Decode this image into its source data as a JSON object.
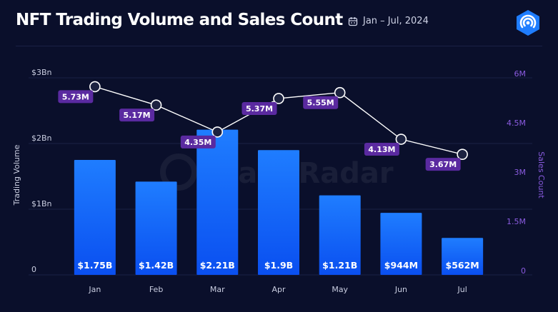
{
  "header": {
    "title": "NFT Trading Volume and Sales Count",
    "date_range": "Jan – Jul, 2024"
  },
  "watermark": {
    "text": "DappRadar"
  },
  "colors": {
    "background": "#0a0f2b",
    "bar_top": "#1f7dff",
    "bar_bottom": "#0a4ff0",
    "line": "#ffffff",
    "marker_fill": "#1c2240",
    "label_bg": "#5a2aa0",
    "right_axis": "#8a5be0",
    "logo": "#1f7dff"
  },
  "chart_data": {
    "type": "bar",
    "categories": [
      "Jan",
      "Feb",
      "Mar",
      "Apr",
      "May",
      "Jun",
      "Jul"
    ],
    "series": [
      {
        "type": "bar",
        "axis": "left",
        "values": [
          1.75,
          1.42,
          2.21,
          1.9,
          1.21,
          0.944,
          0.562
        ],
        "labels": [
          "$1.75B",
          "$1.42B",
          "$2.21B",
          "$1.9B",
          "$1.21B",
          "$944M",
          "$562M"
        ]
      },
      {
        "type": "line",
        "axis": "right",
        "values": [
          5.73,
          5.17,
          4.35,
          5.37,
          5.55,
          4.13,
          3.67
        ],
        "labels": [
          "5.73M",
          "5.17M",
          "4.35M",
          "5.37M",
          "5.55M",
          "4.13M",
          "3.67M"
        ]
      }
    ],
    "y_left": {
      "label": "Trading Volume",
      "range": [
        0,
        3
      ],
      "ticks": [
        0,
        1,
        2,
        3
      ],
      "tick_labels": [
        "0",
        "$1Bn",
        "$2Bn",
        "$3Bn"
      ]
    },
    "y_right": {
      "label": "Sales Count",
      "range": [
        0,
        6
      ],
      "ticks": [
        0,
        1.5,
        3,
        4.5,
        6
      ],
      "tick_labels": [
        "0",
        "1.5M",
        "3M",
        "4.5M",
        "6M"
      ]
    },
    "grid": true
  }
}
